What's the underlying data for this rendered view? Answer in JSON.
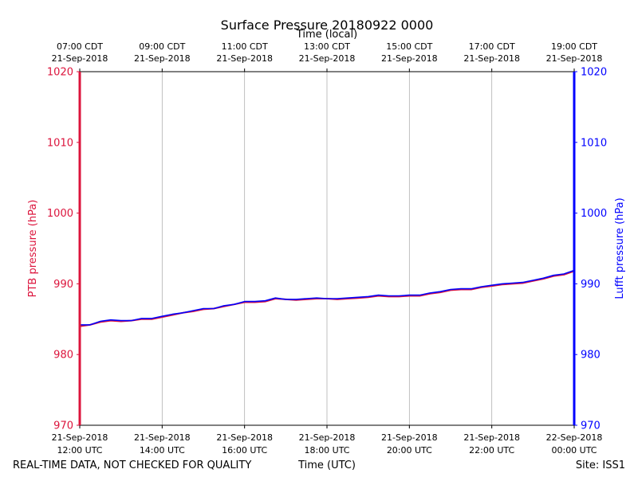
{
  "chart_data": {
    "type": "line",
    "title": "Surface Pressure 20180922 0000",
    "top_axis_label": "Time (local)",
    "top_ticks": [
      {
        "time": "07:00 CDT",
        "date": "21-Sep-2018"
      },
      {
        "time": "09:00 CDT",
        "date": "21-Sep-2018"
      },
      {
        "time": "11:00 CDT",
        "date": "21-Sep-2018"
      },
      {
        "time": "13:00 CDT",
        "date": "21-Sep-2018"
      },
      {
        "time": "15:00 CDT",
        "date": "21-Sep-2018"
      },
      {
        "time": "17:00 CDT",
        "date": "21-Sep-2018"
      },
      {
        "time": "19:00 CDT",
        "date": "21-Sep-2018"
      }
    ],
    "bottom_ticks": [
      {
        "date": "21-Sep-2018",
        "time": "12:00 UTC"
      },
      {
        "date": "21-Sep-2018",
        "time": "14:00 UTC"
      },
      {
        "date": "21-Sep-2018",
        "time": "16:00 UTC"
      },
      {
        "date": "21-Sep-2018",
        "time": "18:00 UTC"
      },
      {
        "date": "21-Sep-2018",
        "time": "20:00 UTC"
      },
      {
        "date": "21-Sep-2018",
        "time": "22:00 UTC"
      },
      {
        "date": "22-Sep-2018",
        "time": "00:00 UTC"
      }
    ],
    "xlabel": "Time (UTC)",
    "xlim": [
      0,
      12
    ],
    "ylabel_left": "PTB pressure (hPa)",
    "ylabel_right": "Lufft pressure (hPa)",
    "ylim": [
      970,
      1020
    ],
    "yticks": [
      970,
      980,
      990,
      1000,
      1010,
      1020
    ],
    "vertical_grid": true,
    "left_color": "#dc143c",
    "right_color": "#0000ff",
    "series": [
      {
        "name": "PTB pressure",
        "color": "#dc143c",
        "x": [
          0,
          0.25,
          0.5,
          0.75,
          1,
          1.25,
          1.5,
          1.75,
          2,
          2.25,
          2.5,
          2.75,
          3,
          3.25,
          3.5,
          3.75,
          4,
          4.25,
          4.5,
          4.75,
          5,
          5.25,
          5.5,
          5.75,
          6,
          6.25,
          6.5,
          6.75,
          7,
          7.25,
          7.5,
          7.75,
          8,
          8.25,
          8.5,
          8.75,
          9,
          9.25,
          9.5,
          9.75,
          10,
          10.25,
          10.5,
          10.75,
          11,
          11.25,
          11.5,
          11.75,
          12
        ],
        "values": [
          984.0,
          984.2,
          984.6,
          984.8,
          984.7,
          984.8,
          985.0,
          985.0,
          985.3,
          985.6,
          985.9,
          986.1,
          986.4,
          986.5,
          986.8,
          987.1,
          987.4,
          987.4,
          987.5,
          987.9,
          987.8,
          987.7,
          987.8,
          987.9,
          987.9,
          987.8,
          987.9,
          988.0,
          988.1,
          988.3,
          988.2,
          988.2,
          988.3,
          988.3,
          988.6,
          988.8,
          989.1,
          989.2,
          989.2,
          989.5,
          989.7,
          989.9,
          990.0,
          990.1,
          990.4,
          990.7,
          991.1,
          991.3,
          991.8
        ]
      },
      {
        "name": "Lufft pressure",
        "color": "#0000ff",
        "x": [
          0,
          0.25,
          0.5,
          0.75,
          1,
          1.25,
          1.5,
          1.75,
          2,
          2.25,
          2.5,
          2.75,
          3,
          3.25,
          3.5,
          3.75,
          4,
          4.25,
          4.5,
          4.75,
          5,
          5.25,
          5.5,
          5.75,
          6,
          6.25,
          6.5,
          6.75,
          7,
          7.25,
          7.5,
          7.75,
          8,
          8.25,
          8.5,
          8.75,
          9,
          9.25,
          9.5,
          9.75,
          10,
          10.25,
          10.5,
          10.75,
          11,
          11.25,
          11.5,
          11.75,
          12
        ],
        "values": [
          984.2,
          984.2,
          984.7,
          984.9,
          984.8,
          984.8,
          985.1,
          985.1,
          985.4,
          985.7,
          985.9,
          986.2,
          986.5,
          986.5,
          986.9,
          987.1,
          987.5,
          987.5,
          987.6,
          988.0,
          987.8,
          987.8,
          987.9,
          988.0,
          987.9,
          987.9,
          988.0,
          988.1,
          988.2,
          988.4,
          988.3,
          988.3,
          988.4,
          988.4,
          988.7,
          988.9,
          989.2,
          989.3,
          989.3,
          989.6,
          989.8,
          990.0,
          990.1,
          990.2,
          990.5,
          990.8,
          991.2,
          991.4,
          991.9
        ]
      }
    ]
  },
  "footer": {
    "left_note": "REAL-TIME DATA, NOT CHECKED FOR QUALITY",
    "center_label": "Time (UTC)",
    "site": "Site: ISS1"
  }
}
